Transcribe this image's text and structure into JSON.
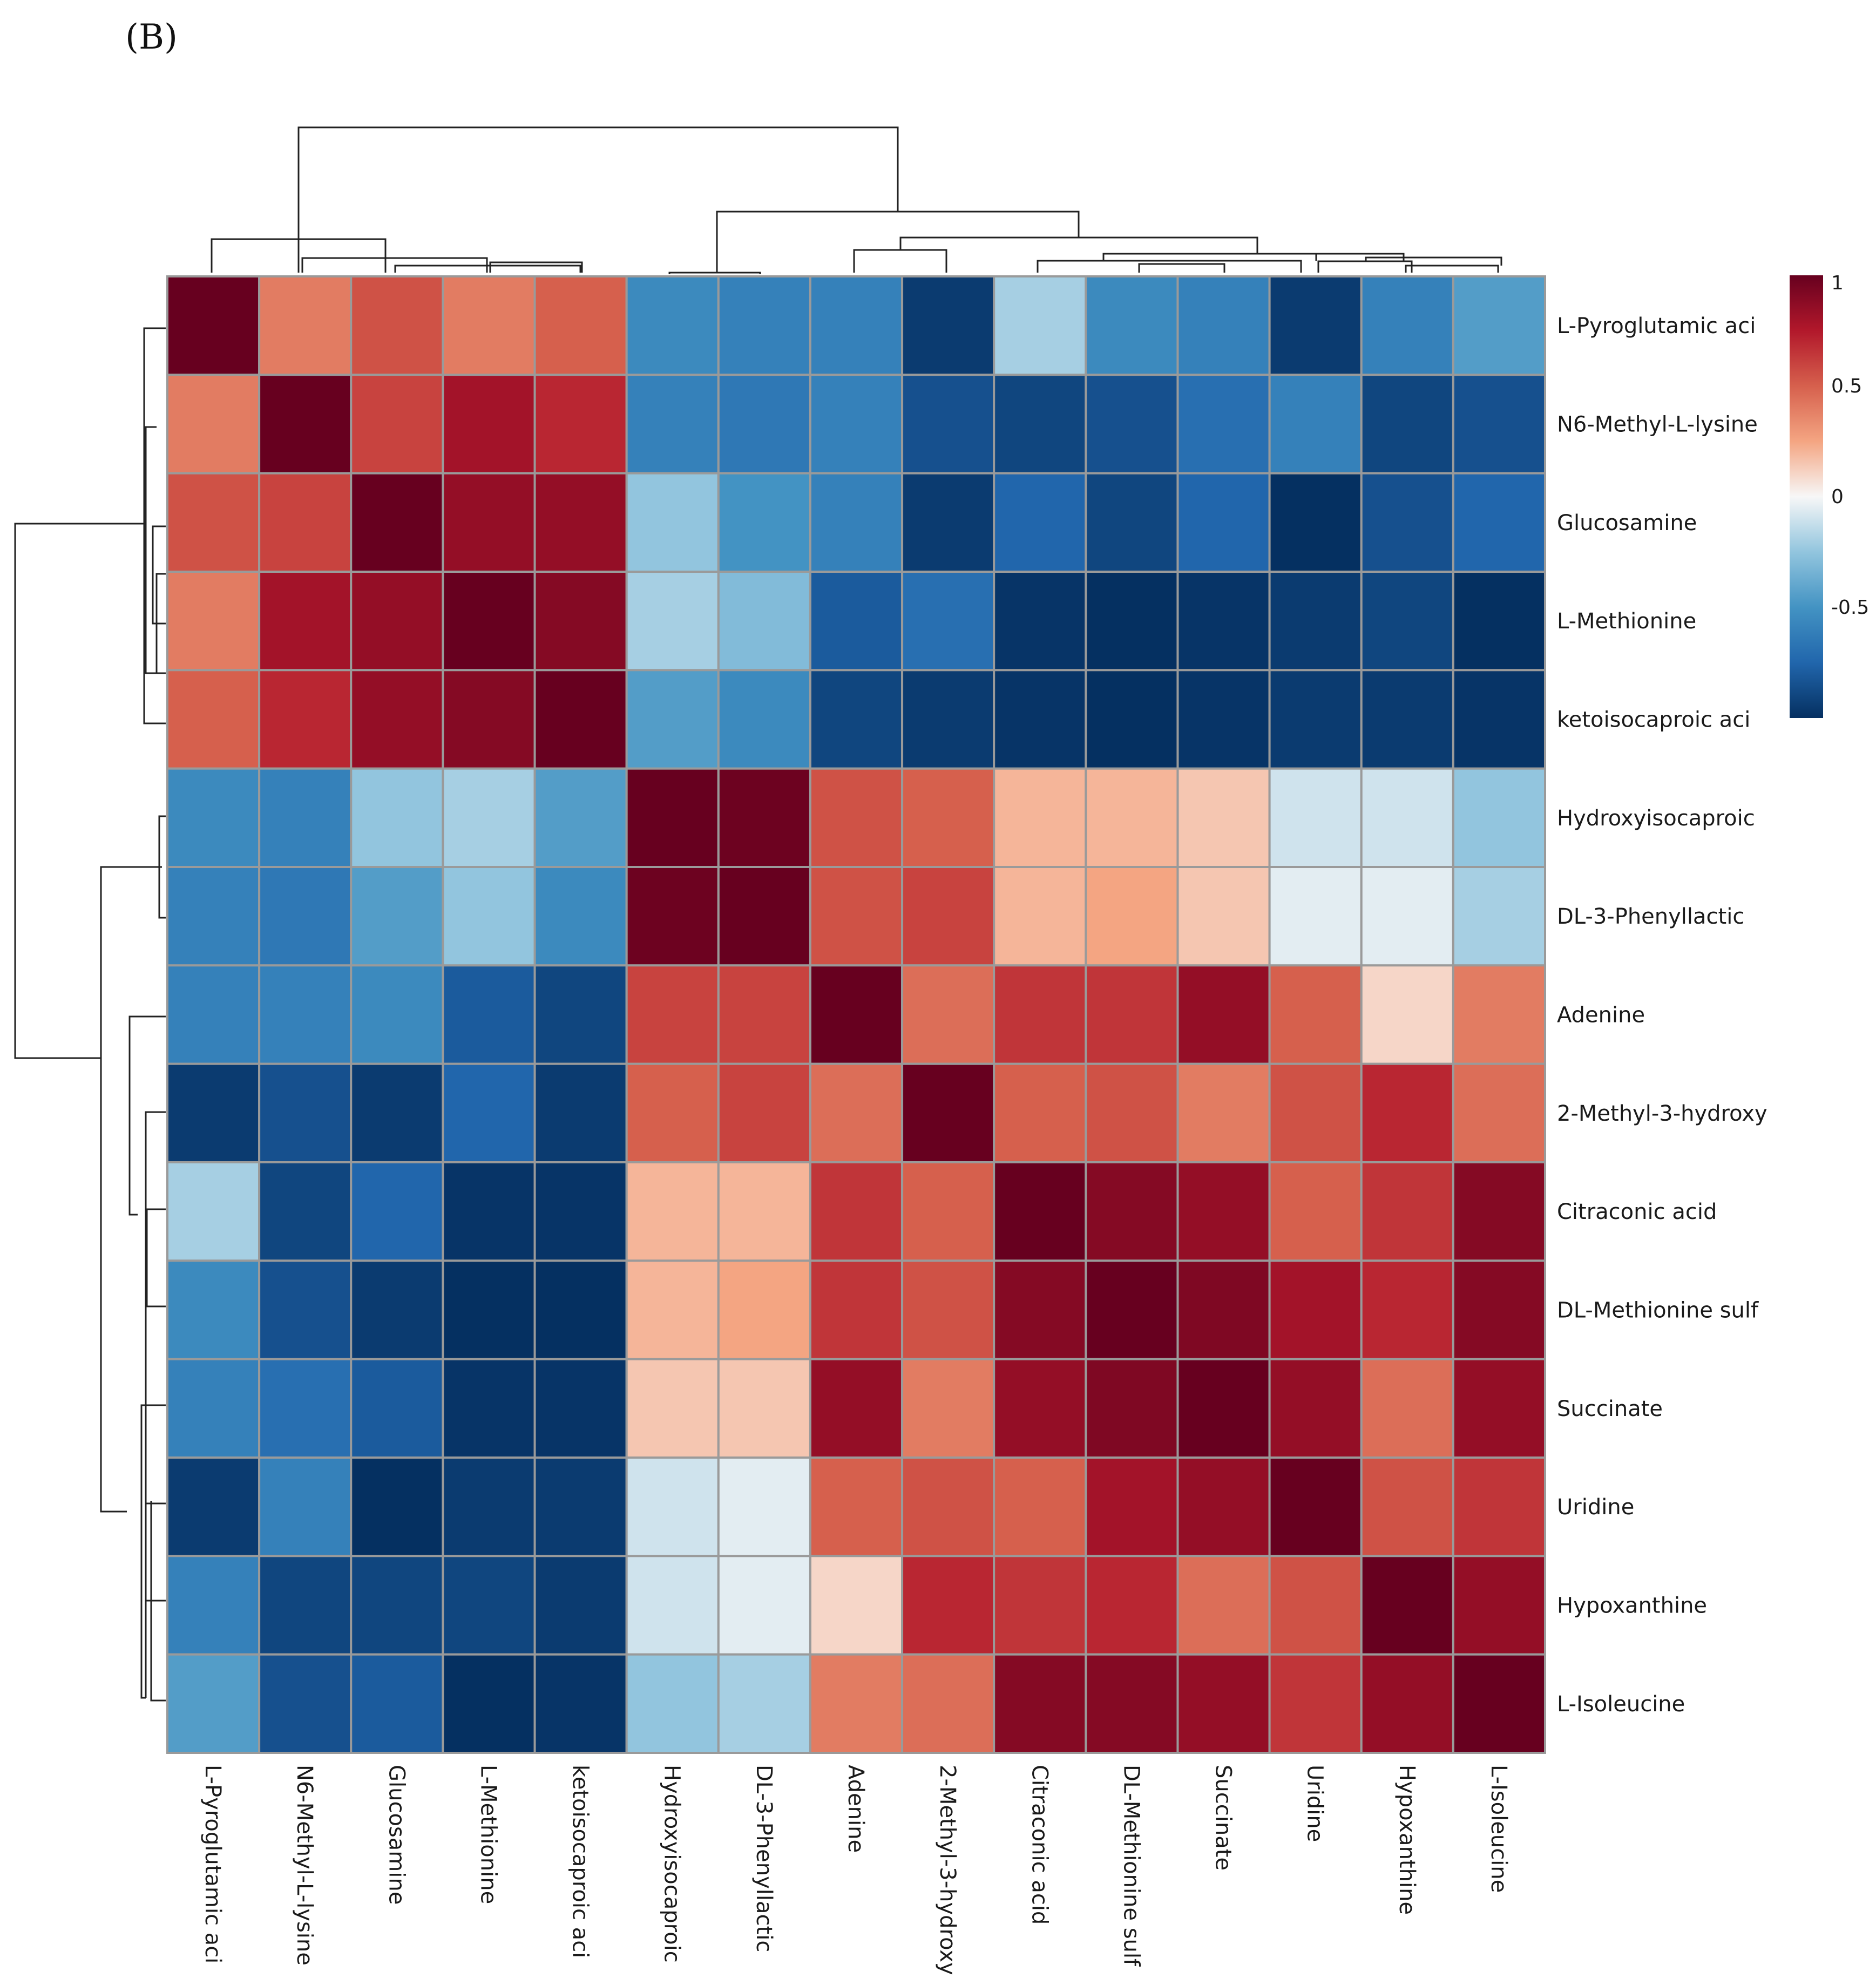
{
  "panel_label": "(B)",
  "chart_data": {
    "type": "heatmap",
    "title": "",
    "row_labels": [
      "L-Pyroglutamic aci",
      "N6-Methyl-L-lysine",
      "Glucosamine",
      "L-Methionine",
      "ketoisocaproic aci",
      "Hydroxyisocaproic",
      "DL-3-Phenyllactic",
      "Adenine",
      "2-Methyl-3-hydroxy",
      "Citraconic acid",
      "DL-Methionine sulf",
      "Succinate",
      "Uridine",
      "Hypoxanthine",
      "L-Isoleucine"
    ],
    "col_labels": [
      "L-Pyroglutamic aci",
      "N6-Methyl-L-lysine",
      "Glucosamine",
      "L-Methionine",
      "ketoisocaproic aci",
      "Hydroxyisocaproic",
      "DL-3-Phenyllactic",
      "Adenine",
      "2-Methyl-3-hydroxy",
      "Citraconic acid",
      "DL-Methionine sulf",
      "Succinate",
      "Uridine",
      "Hypoxanthine",
      "L-Isoleucine"
    ],
    "values": [
      [
        1.0,
        0.4,
        0.55,
        0.4,
        0.5,
        -0.55,
        -0.6,
        -0.6,
        -0.95,
        -0.2,
        -0.55,
        -0.6,
        -0.95,
        -0.6,
        -0.45
      ],
      [
        0.4,
        1.0,
        0.6,
        0.8,
        0.7,
        -0.6,
        -0.65,
        -0.6,
        -0.85,
        -0.9,
        -0.85,
        -0.7,
        -0.6,
        -0.9,
        -0.85
      ],
      [
        0.55,
        0.6,
        1.0,
        0.85,
        0.85,
        -0.25,
        -0.5,
        -0.6,
        -0.95,
        -0.75,
        -0.9,
        -0.75,
        -1.0,
        -0.85,
        -0.75
      ],
      [
        0.4,
        0.8,
        0.85,
        1.0,
        0.9,
        -0.2,
        -0.3,
        -0.8,
        -0.7,
        -0.98,
        -1.0,
        -0.98,
        -0.95,
        -0.9,
        -1.0
      ],
      [
        0.5,
        0.7,
        0.85,
        0.9,
        1.0,
        -0.45,
        -0.55,
        -0.9,
        -0.95,
        -0.98,
        -1.0,
        -0.98,
        -0.95,
        -0.95,
        -0.98
      ],
      [
        -0.55,
        -0.6,
        -0.25,
        -0.2,
        -0.45,
        1.0,
        0.98,
        0.55,
        0.5,
        0.2,
        0.2,
        0.15,
        -0.1,
        -0.1,
        -0.25
      ],
      [
        -0.6,
        -0.65,
        -0.45,
        -0.25,
        -0.55,
        0.98,
        1.0,
        0.55,
        0.6,
        0.2,
        0.25,
        0.15,
        -0.05,
        -0.05,
        -0.2
      ],
      [
        -0.6,
        -0.6,
        -0.55,
        -0.8,
        -0.9,
        0.6,
        0.6,
        1.0,
        0.45,
        0.65,
        0.65,
        0.85,
        0.5,
        0.1,
        0.4
      ],
      [
        -0.95,
        -0.85,
        -0.95,
        -0.75,
        -0.95,
        0.5,
        0.6,
        0.45,
        1.0,
        0.5,
        0.55,
        0.4,
        0.55,
        0.7,
        0.45
      ],
      [
        -0.2,
        -0.9,
        -0.75,
        -0.98,
        -0.98,
        0.2,
        0.2,
        0.65,
        0.5,
        1.0,
        0.9,
        0.85,
        0.5,
        0.65,
        0.9
      ],
      [
        -0.55,
        -0.85,
        -0.95,
        -1.0,
        -1.0,
        0.2,
        0.25,
        0.65,
        0.55,
        0.9,
        1.0,
        0.92,
        0.8,
        0.7,
        0.9
      ],
      [
        -0.6,
        -0.7,
        -0.8,
        -0.98,
        -0.98,
        0.15,
        0.15,
        0.85,
        0.4,
        0.85,
        0.92,
        1.0,
        0.85,
        0.45,
        0.85
      ],
      [
        -0.95,
        -0.6,
        -1.0,
        -0.95,
        -0.95,
        -0.1,
        -0.05,
        0.5,
        0.55,
        0.5,
        0.8,
        0.85,
        1.0,
        0.55,
        0.65
      ],
      [
        -0.6,
        -0.9,
        -0.9,
        -0.9,
        -0.95,
        -0.1,
        -0.05,
        0.1,
        0.7,
        0.65,
        0.7,
        0.45,
        0.55,
        1.0,
        0.85
      ],
      [
        -0.45,
        -0.85,
        -0.8,
        -1.0,
        -0.98,
        -0.25,
        -0.2,
        0.4,
        0.45,
        0.9,
        0.9,
        0.85,
        0.65,
        0.85,
        1.0
      ]
    ],
    "legend": {
      "ticks": [
        1,
        0.5,
        0,
        -0.5
      ],
      "tick_labels": [
        "1",
        "0.5",
        "0",
        "-0.5"
      ],
      "range": [
        -1,
        1
      ],
      "placement": "top-right"
    },
    "colors": {
      "neg_strong": "#053061",
      "neg_mid": "#4393c3",
      "neg_light": "#d1e5f0",
      "zero": "#f7f7f7",
      "pos_light": "#fddbc7",
      "pos_mid": "#d6604d",
      "pos_strong": "#67001f",
      "grid": "#9a9a9a"
    }
  }
}
